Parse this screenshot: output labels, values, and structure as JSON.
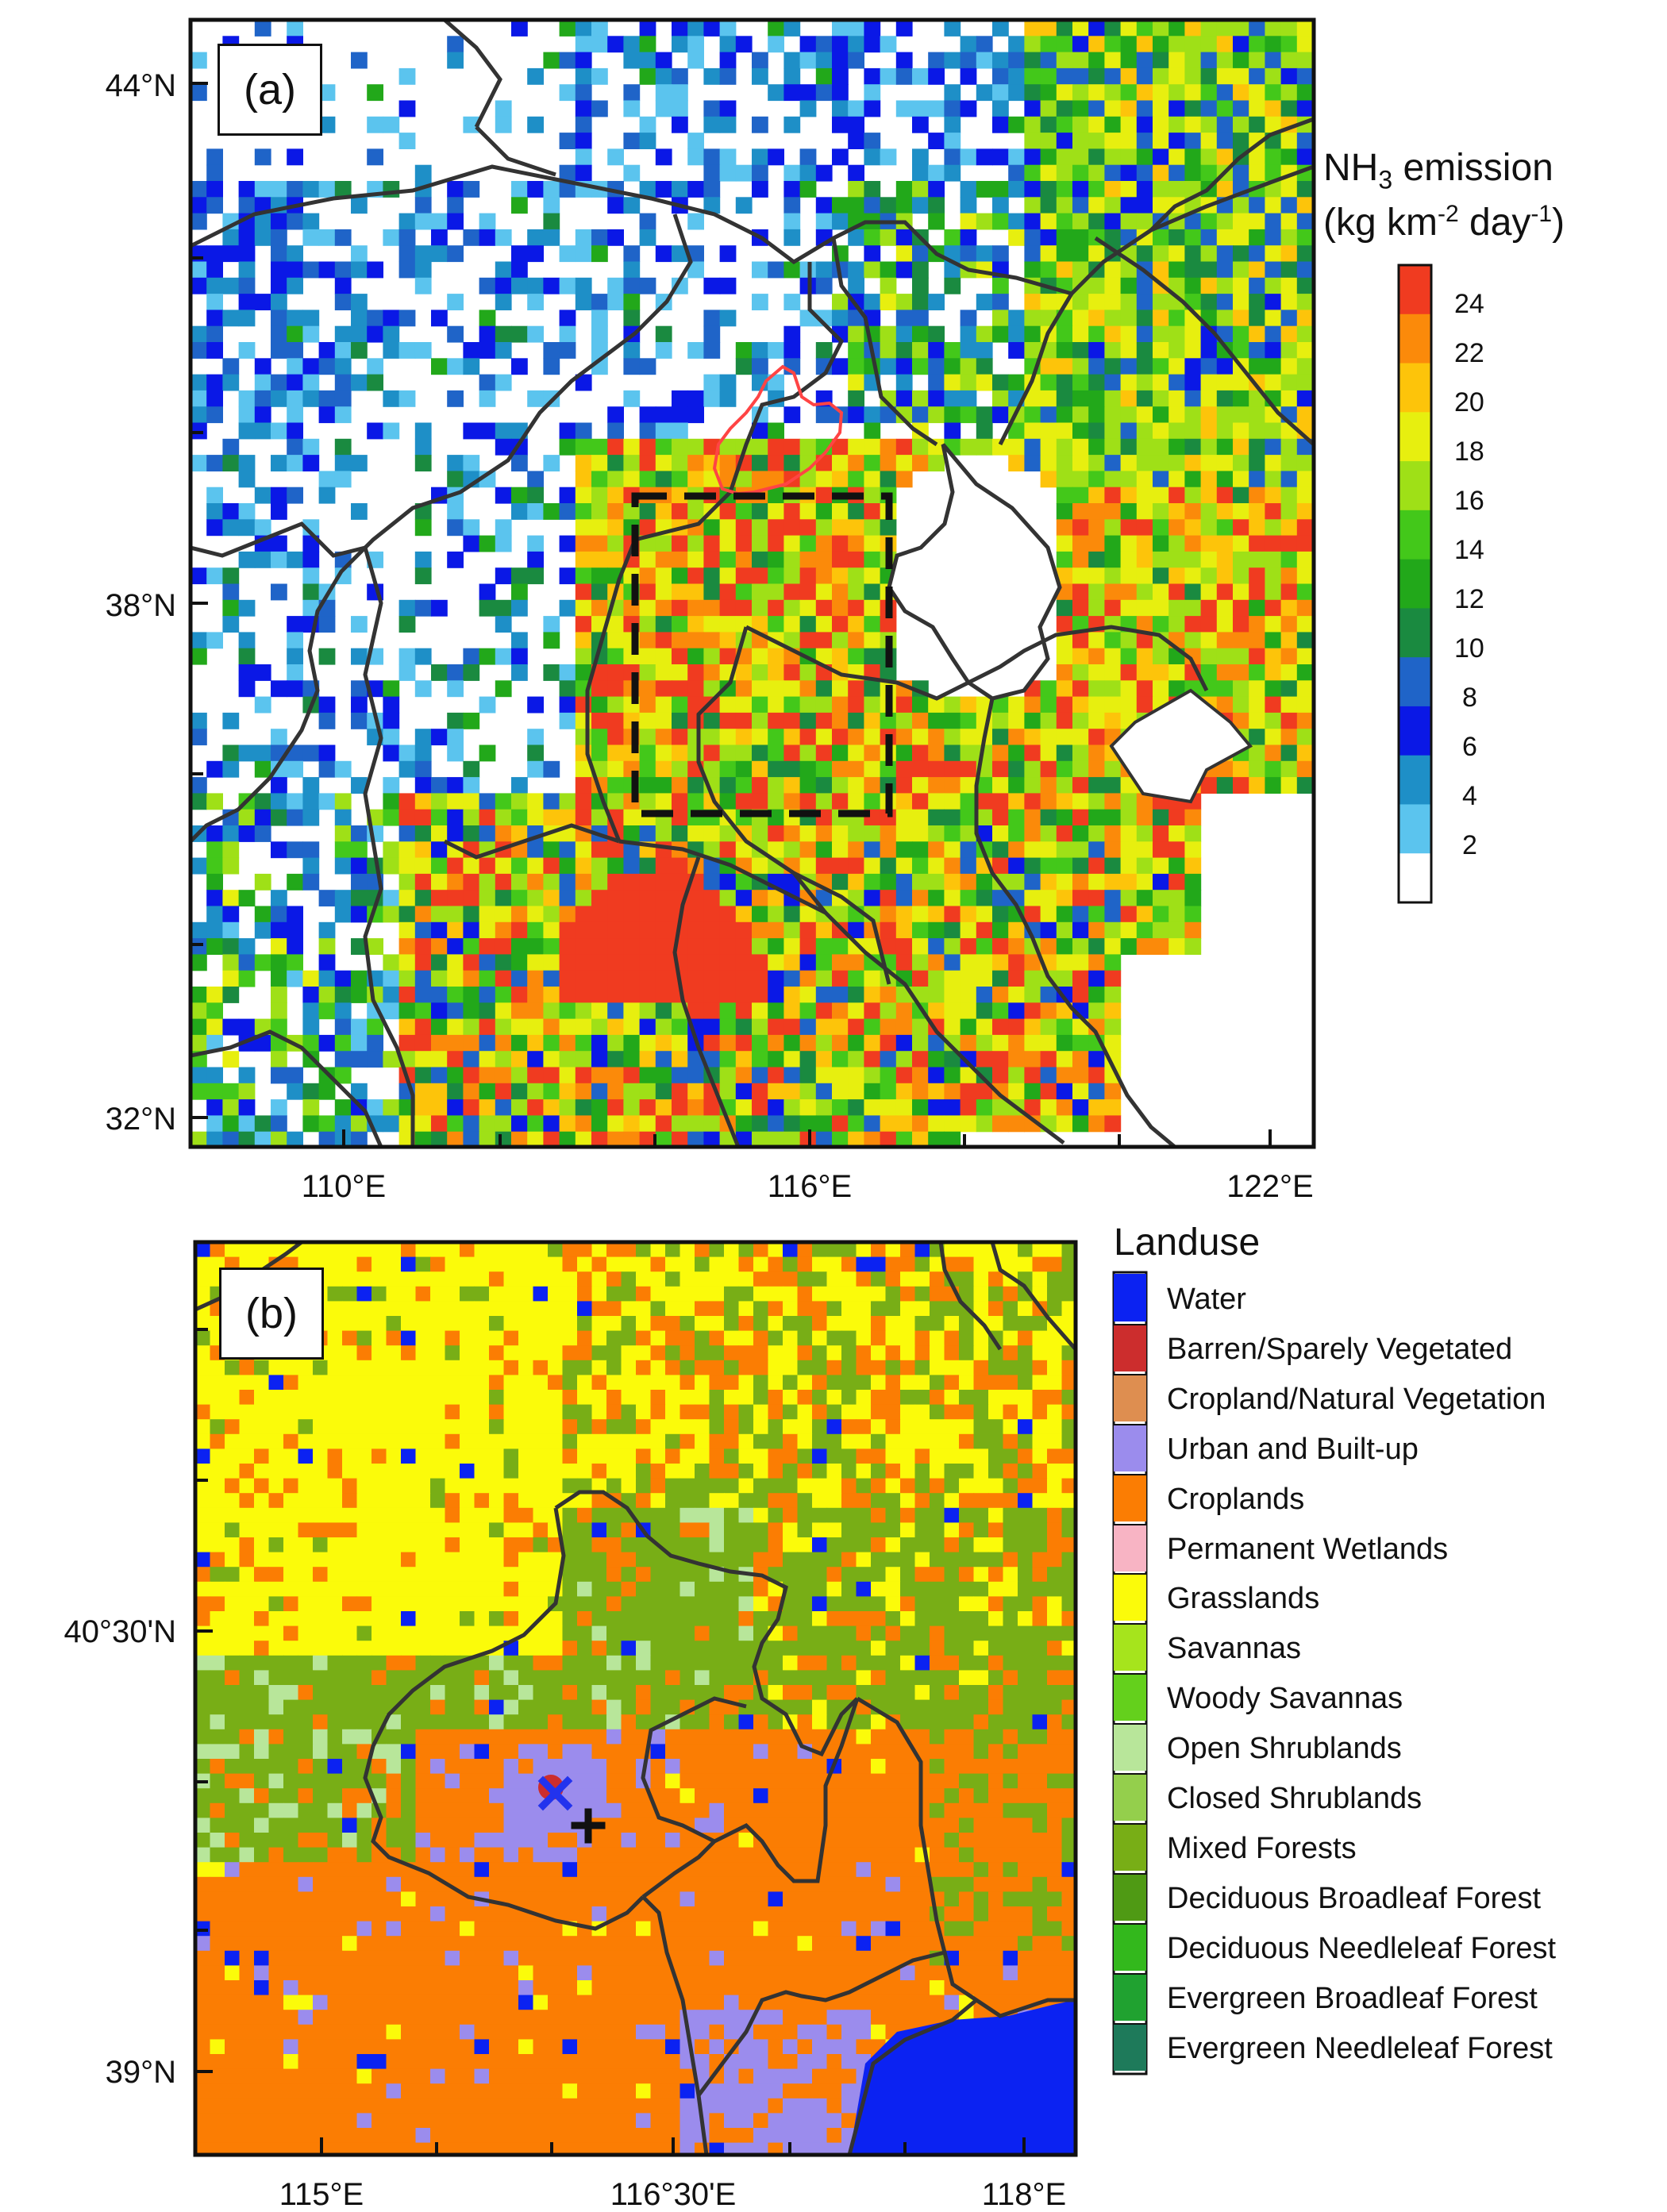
{
  "panel_a": {
    "tag": "(a)",
    "lat_labels": [
      "44°N",
      "38°N",
      "32°N"
    ],
    "lon_labels": [
      "110°E",
      "116°E",
      "122°E"
    ],
    "colorbar": {
      "title_line1_prefix": "NH",
      "title_line1_sub": "3",
      "title_line1_suffix": " emission",
      "title_line2_prefix": "(kg km",
      "title_line2_sup1": "-2",
      "title_line2_mid": " day",
      "title_line2_sup2": "-1",
      "title_line2_suffix": ")",
      "ticks": [
        "24",
        "22",
        "20",
        "18",
        "16",
        "14",
        "12",
        "10",
        "8",
        "6",
        "4",
        "2"
      ],
      "colors": [
        "#f03b20",
        "#fb8a0a",
        "#fdc40a",
        "#e7ef0f",
        "#9fe017",
        "#43c81a",
        "#22a81a",
        "#1a8a40",
        "#1f64c8",
        "#0a18e6",
        "#1e8fc7",
        "#5bc4ee",
        "#ffffff"
      ]
    }
  },
  "panel_b": {
    "tag": "(b)",
    "lat_labels": [
      "40°30'N",
      "39°N"
    ],
    "lon_labels": [
      "115°E",
      "116°30'E",
      "118°E"
    ],
    "legend_title": "Landuse",
    "legend": [
      {
        "label": "Water",
        "color": "#0b22f2"
      },
      {
        "label": "Barren/Sparely Vegetated",
        "color": "#cc2d2d"
      },
      {
        "label": "Cropland/Natural Vegetation",
        "color": "#de8e50"
      },
      {
        "label": "Urban and Built-up",
        "color": "#9b8ced"
      },
      {
        "label": "Croplands",
        "color": "#fb7d03"
      },
      {
        "label": "Permanent Wetlands",
        "color": "#f8b4c4"
      },
      {
        "label": "Grasslands",
        "color": "#fbfb0a"
      },
      {
        "label": "Savannas",
        "color": "#a6e41c"
      },
      {
        "label": "Woody Savannas",
        "color": "#64d01c"
      },
      {
        "label": "Open Shrublands",
        "color": "#b8e69a"
      },
      {
        "label": "Closed Shrublands",
        "color": "#94cf4c"
      },
      {
        "label": "Mixed Forests",
        "color": "#78ae16"
      },
      {
        "label": "Deciduous Broadleaf Forest",
        "color": "#4f9a14"
      },
      {
        "label": "Deciduous Needleleaf Forest",
        "color": "#33b81c"
      },
      {
        "label": "Evergreen Broadleaf Forest",
        "color": "#20a230"
      },
      {
        "label": "Evergreen Needleleaf Forest",
        "color": "#1e7a5a"
      }
    ]
  }
}
